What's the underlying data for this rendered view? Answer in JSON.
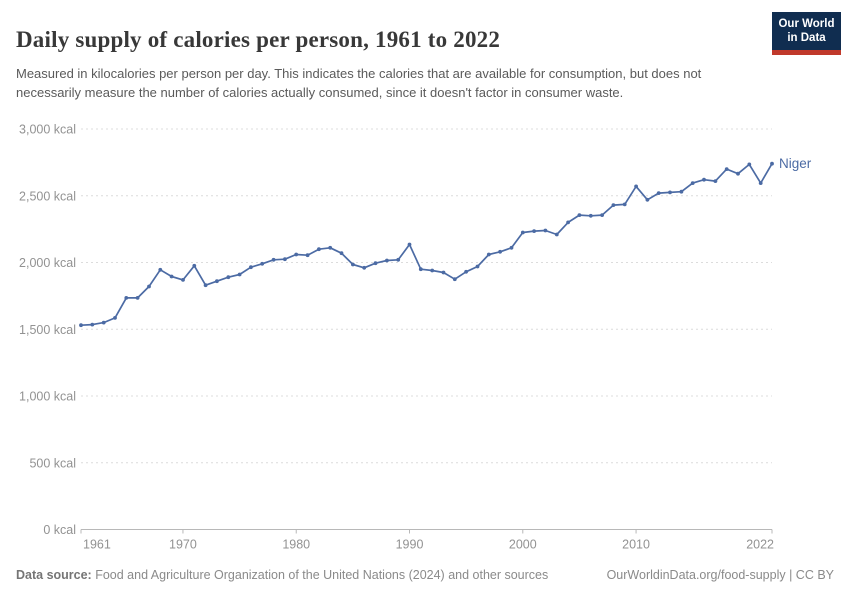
{
  "header": {
    "title": "Daily supply of calories per person, 1961 to 2022",
    "subtitle": "Measured in kilocalories per person per day. This indicates the calories that are available for consumption, but does not necessarily measure the number of calories actually consumed, since it doesn't factor in consumer waste."
  },
  "logo": {
    "line1": "Our World",
    "line2": "in Data",
    "bg_color": "#102d50",
    "accent_color": "#c0392b"
  },
  "chart_data": {
    "type": "line",
    "title": "Daily supply of calories per person, 1961 to 2022",
    "unit": "kcal",
    "entity_label": "Niger",
    "line_color": "#4c6ba4",
    "axis_text_color": "#929292",
    "gridline_color": "#dcdcdc",
    "axis_line_color": "#b8b8b8",
    "grid": "horizontal-dashed",
    "legend_position": "end-of-line-label",
    "xlim": [
      1961,
      2022
    ],
    "ylim": [
      0,
      3000
    ],
    "x_ticks": [
      1961,
      1970,
      1980,
      1990,
      2000,
      2010,
      2022
    ],
    "y_ticks": [
      0,
      500,
      1000,
      1500,
      2000,
      2500,
      3000
    ],
    "y_tick_labels": [
      "0 kcal",
      "500 kcal",
      "1,000 kcal",
      "1,500 kcal",
      "2,000 kcal",
      "2,500 kcal",
      "3,000 kcal"
    ],
    "x": [
      1961,
      1962,
      1963,
      1964,
      1965,
      1966,
      1967,
      1968,
      1969,
      1970,
      1971,
      1972,
      1973,
      1974,
      1975,
      1976,
      1977,
      1978,
      1979,
      1980,
      1981,
      1982,
      1983,
      1984,
      1985,
      1986,
      1987,
      1988,
      1989,
      1990,
      1991,
      1992,
      1993,
      1994,
      1995,
      1996,
      1997,
      1998,
      1999,
      2000,
      2001,
      2002,
      2003,
      2004,
      2005,
      2006,
      2007,
      2008,
      2009,
      2010,
      2011,
      2012,
      2013,
      2014,
      2015,
      2016,
      2017,
      2018,
      2019,
      2020,
      2021,
      2022
    ],
    "series": [
      {
        "name": "Niger",
        "values": [
          1530,
          1535,
          1550,
          1585,
          1735,
          1735,
          1820,
          1945,
          1895,
          1870,
          1975,
          1830,
          1860,
          1890,
          1910,
          1965,
          1990,
          2020,
          2025,
          2060,
          2055,
          2100,
          2110,
          2070,
          1985,
          1960,
          1995,
          2015,
          2020,
          2135,
          1950,
          1940,
          1925,
          1875,
          1930,
          1970,
          2060,
          2080,
          2110,
          2225,
          2235,
          2240,
          2210,
          2300,
          2355,
          2350,
          2355,
          2430,
          2435,
          2570,
          2470,
          2520,
          2525,
          2530,
          2595,
          2620,
          2610,
          2700,
          2665,
          2735,
          2595,
          2740
        ]
      }
    ]
  },
  "footer": {
    "data_source_label": "Data source:",
    "data_source_text": " Food and Agriculture Organization of the United Nations (2024) and other sources",
    "link_text": "OurWorldinData.org/food-supply | CC BY"
  }
}
